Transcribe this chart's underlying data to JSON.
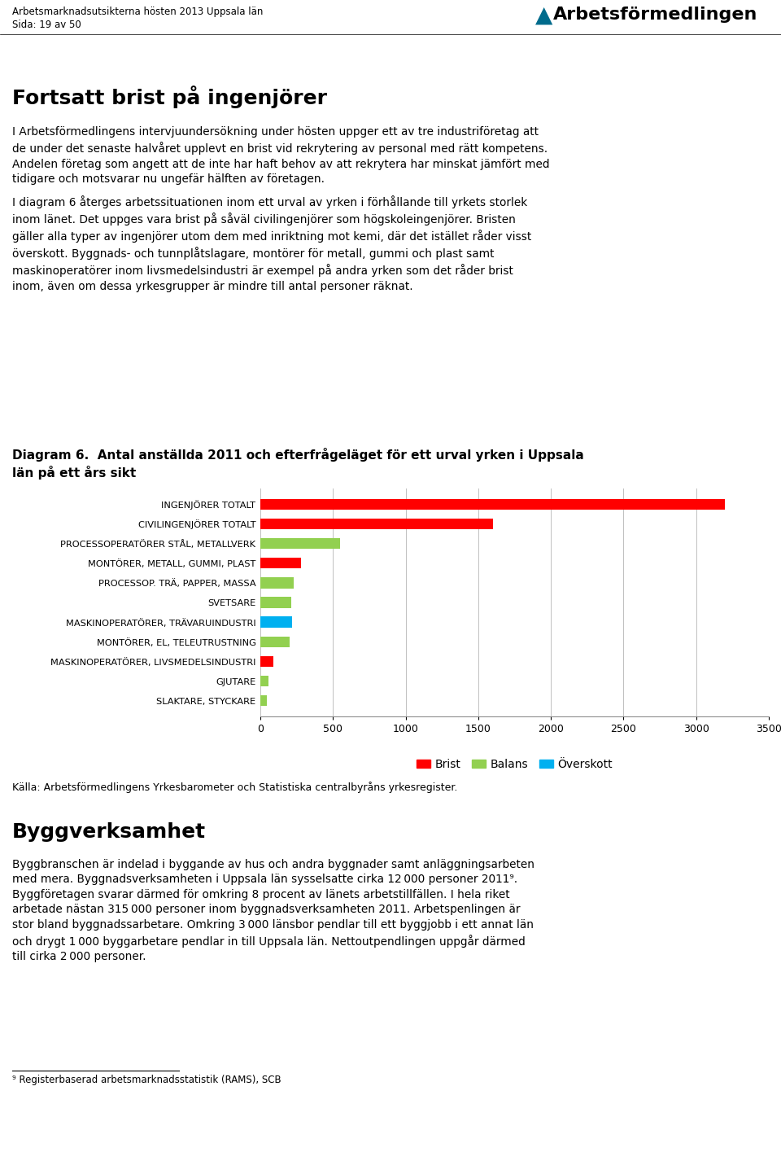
{
  "categories": [
    "INGENJÖRER TOTALT",
    "CIVILINGENJÖRER TOTALT",
    "PROCESSOPERATÖRER STÅL, METALLVERK",
    "MONTÖRER, METALL, GUMMI, PLAST",
    "PROCESSOP. TRÄ, PAPPER, MASSA",
    "SVETSARE",
    "MASKINOPERATÖRER, TRÄVARUINDUSTRI",
    "MONTÖRER, EL, TELEUTRUSTNING",
    "MASKINOPERATÖRER, LIVSMEDELSINDUSTRI",
    "GJUTARE",
    "SLAKTARE, STYCKARE"
  ],
  "values": [
    3200,
    1600,
    550,
    280,
    230,
    210,
    220,
    200,
    90,
    55,
    45
  ],
  "colors": [
    "#FF0000",
    "#FF0000",
    "#92D050",
    "#FF0000",
    "#92D050",
    "#92D050",
    "#00B0F0",
    "#92D050",
    "#FF0000",
    "#92D050",
    "#92D050"
  ],
  "xlim": [
    0,
    3500
  ],
  "xticks": [
    0,
    500,
    1000,
    1500,
    2000,
    2500,
    3000,
    3500
  ],
  "legend_labels": [
    "Brist",
    "Balans",
    "Överskott"
  ],
  "legend_colors": [
    "#FF0000",
    "#92D050",
    "#00B0F0"
  ],
  "diagram_title_line1": "Diagram 6.  Antal anställda 2011 och efterfrågeläget för ett urval yrken i Uppsala",
  "diagram_title_line2": "län på ett års sikt",
  "source": "Källa: Arbetsförmedlingens Yrkesbarometer och Statistiska centralbyråns yrkesregister.",
  "page_header1": "Arbetsmarknadsutsikterna hösten 2013 Uppsala län",
  "page_header2": "Sida: 19 av 50",
  "main_heading": "Fortsatt brist på ingenjörer",
  "body1_lines": [
    "I Arbetsförmedlingens intervjuundersökning under hösten uppger ett av tre industriföretag att",
    "de under det senaste halvåret upplevt en brist vid rekrytering av personal med rätt kompetens.",
    "Andelen företag som angett att de inte har haft behov av att rekrytera har minskat jämfört med",
    "tidigare och motsvarar nu ungefär hälften av företagen."
  ],
  "body2_lines": [
    "I diagram 6 återges arbetssituationen inom ett urval av yrken i förhållande till yrkets storlek",
    "inom länet. Det uppges vara brist på såväl civilingenjörer som högskoleingenjörer. Bristen",
    "gäller alla typer av ingenjörer utom dem med inriktning mot kemi, där det istället råder visst",
    "överskott. Byggnads- och tunnplåtslagare, montörer för metall, gummi och plast samt",
    "maskinoperatörer inom livsmedelsindustri är exempel på andra yrken som det råder brist",
    "inom, även om dessa yrkesgrupper är mindre till antal personer räknat."
  ],
  "section_heading": "Byggverksamhet",
  "bygg_lines": [
    "Byggbranschen är indelad i byggande av hus och andra byggnader samt anläggningsarbeten",
    "med mera. Byggnadsverksamheten i Uppsala län sysselsatte cirka 12 000 personer 2011⁹.",
    "Byggföretagen svarar därmed för omkring 8 procent av länets arbetstillfällen. I hela riket",
    "arbetade nästan 315 000 personer inom byggnadsverksamheten 2011. Arbetspenlingen är",
    "stor bland byggnadssarbetare. Omkring 3 000 länsbor pendlar till ett byggjobb i ett annat län",
    "och drygt 1 000 byggarbetare pendlar in till Uppsala län. Nettoutpendlingen uppgår därmed",
    "till cirka 2 000 personer."
  ],
  "footnote": "⁹ Registerbaserad arbetsmarknadsstatistik (RAMS), SCB",
  "bar_height": 0.55,
  "figsize": [
    9.6,
    14.15
  ]
}
